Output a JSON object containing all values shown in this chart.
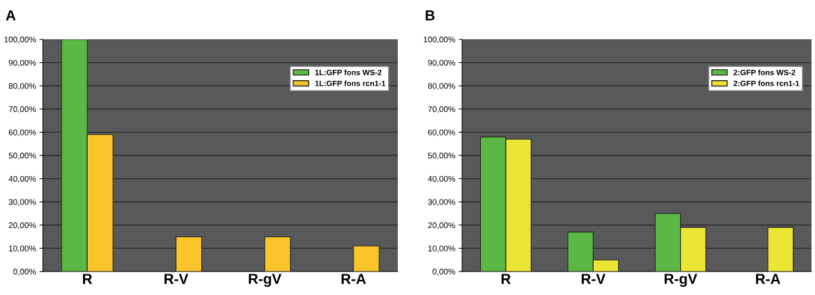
{
  "chart_data": [
    {
      "type": "bar",
      "title": "A",
      "categories": [
        "R",
        "R-V",
        "R-gV",
        "R-A"
      ],
      "series": [
        {
          "name": "1L:GFP fons WS-2",
          "color": "#5bb844",
          "values": [
            100,
            null,
            null,
            null
          ]
        },
        {
          "name": "1L:GFP fons rcn1-1",
          "color": "#f9c52b",
          "values": [
            59,
            15,
            15,
            11
          ]
        }
      ],
      "ylim": [
        0,
        100
      ],
      "yticks": [
        {
          "value": 0,
          "label": "0,00%"
        },
        {
          "value": 10,
          "label": "10,00%"
        },
        {
          "value": 20,
          "label": "20,00%"
        },
        {
          "value": 30,
          "label": "30,00%"
        },
        {
          "value": 40,
          "label": "40,00%"
        },
        {
          "value": 50,
          "label": "50,00%"
        },
        {
          "value": 60,
          "label": "60,00%"
        },
        {
          "value": 70,
          "label": "70,00%"
        },
        {
          "value": 80,
          "label": "80,00%"
        },
        {
          "value": 90,
          "label": "90,00%"
        },
        {
          "value": 100,
          "label": "100,00%"
        }
      ],
      "grid": "y",
      "legend": "top right"
    },
    {
      "type": "bar",
      "title": "B",
      "categories": [
        "R",
        "R-V",
        "R-gV",
        "R-A"
      ],
      "series": [
        {
          "name": "2:GFP fons WS-2",
          "color": "#5bb844",
          "values": [
            58,
            17,
            25,
            null
          ]
        },
        {
          "name": "2:GFP fons rcn1-1",
          "color": "#ece535",
          "values": [
            57,
            5,
            19,
            19
          ]
        }
      ],
      "ylim": [
        0,
        100
      ],
      "yticks": [
        {
          "value": 0,
          "label": "0,00%"
        },
        {
          "value": 10,
          "label": "10,00%"
        },
        {
          "value": 20,
          "label": "20,00%"
        },
        {
          "value": 30,
          "label": "30,00%"
        },
        {
          "value": 40,
          "label": "40,00%"
        },
        {
          "value": 50,
          "label": "50,00%"
        },
        {
          "value": 60,
          "label": "60,00%"
        },
        {
          "value": 70,
          "label": "70,00%"
        },
        {
          "value": 80,
          "label": "80,00%"
        },
        {
          "value": 90,
          "label": "90,00%"
        },
        {
          "value": 100,
          "label": "100,00%"
        }
      ],
      "grid": "y",
      "legend": "top right"
    }
  ]
}
